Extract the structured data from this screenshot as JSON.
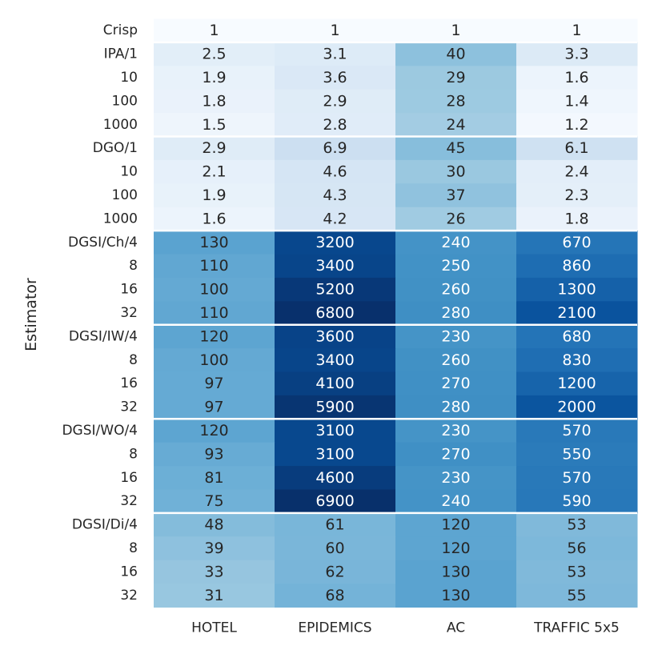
{
  "chart_data": {
    "type": "heatmap",
    "ylabel": "Estimator",
    "xlabel": "",
    "colormap": "Blues",
    "color_scale": "log",
    "columns": [
      "HOTEL",
      "EPIDEMICS",
      "AC",
      "TRAFFIC 5x5"
    ],
    "rows": [
      "Crisp",
      "IPA/1",
      "10",
      "100",
      "1000",
      "DGO/1",
      "10",
      "100",
      "1000",
      "DGSI/Ch/4",
      "8",
      "16",
      "32",
      "DGSI/IW/4",
      "8",
      "16",
      "32",
      "DGSI/WO/4",
      "8",
      "16",
      "32",
      "DGSI/Di/4",
      "8",
      "16",
      "32"
    ],
    "group_separators_after_row": [
      0,
      4,
      8,
      12,
      16,
      20
    ],
    "values": [
      [
        1,
        1,
        1,
        1
      ],
      [
        2.5,
        3.1,
        40,
        3.3
      ],
      [
        1.9,
        3.6,
        29,
        1.6
      ],
      [
        1.8,
        2.9,
        28,
        1.4
      ],
      [
        1.5,
        2.8,
        24,
        1.2
      ],
      [
        2.9,
        6.9,
        45,
        6.1
      ],
      [
        2.1,
        4.6,
        30,
        2.4
      ],
      [
        1.9,
        4.3,
        37,
        2.3
      ],
      [
        1.6,
        4.2,
        26,
        1.8
      ],
      [
        130,
        3200,
        240,
        670
      ],
      [
        110,
        3400,
        250,
        860
      ],
      [
        100,
        5200,
        260,
        1300
      ],
      [
        110,
        6800,
        280,
        2100
      ],
      [
        120,
        3600,
        230,
        680
      ],
      [
        100,
        3400,
        260,
        830
      ],
      [
        97,
        4100,
        270,
        1200
      ],
      [
        97,
        5900,
        280,
        2000
      ],
      [
        120,
        3100,
        230,
        570
      ],
      [
        93,
        3100,
        270,
        550
      ],
      [
        81,
        4600,
        230,
        570
      ],
      [
        75,
        6900,
        240,
        590
      ],
      [
        48,
        61,
        120,
        53
      ],
      [
        39,
        60,
        120,
        56
      ],
      [
        33,
        62,
        130,
        53
      ],
      [
        31,
        68,
        130,
        55
      ]
    ]
  }
}
